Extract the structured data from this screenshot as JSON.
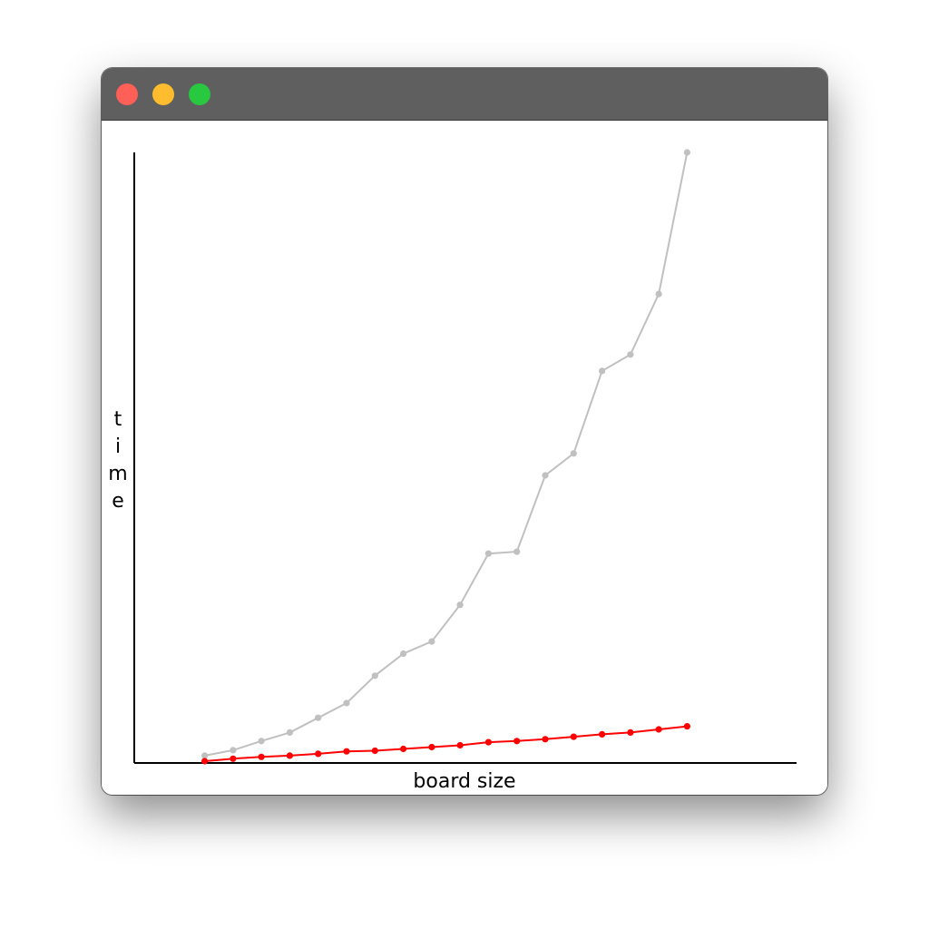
{
  "window": {
    "controls": [
      {
        "name": "close",
        "color": "#fe5f57"
      },
      {
        "name": "minimize",
        "color": "#febc2e"
      },
      {
        "name": "maximize",
        "color": "#28c840"
      }
    ]
  },
  "chart_data": {
    "type": "line",
    "title": "",
    "xlabel": "board size",
    "ylabel": "time",
    "grid": false,
    "legend": "none",
    "x": [
      2,
      3,
      4,
      5,
      6,
      7,
      8,
      9,
      10,
      11,
      12,
      13,
      14,
      15,
      16,
      17,
      18,
      19,
      20,
      21
    ],
    "xlim": [
      0,
      21
    ],
    "ylim": [
      0,
      100
    ],
    "series": [
      {
        "color": "#c0c0c0",
        "values": [
          1.2,
          2.1,
          3.6,
          5.0,
          7.4,
          9.8,
          14.3,
          17.9,
          19.9,
          25.9,
          34.3,
          34.6,
          47.1,
          50.7,
          64.2,
          66.9,
          76.8,
          100.0,
          null,
          null
        ]
      },
      {
        "color": "#ff0000",
        "values": [
          0.3,
          0.7,
          1.0,
          1.2,
          1.5,
          1.9,
          2.0,
          2.3,
          2.6,
          2.9,
          3.4,
          3.6,
          3.9,
          4.3,
          4.7,
          5.0,
          5.5,
          6.0,
          null,
          null
        ]
      }
    ]
  }
}
